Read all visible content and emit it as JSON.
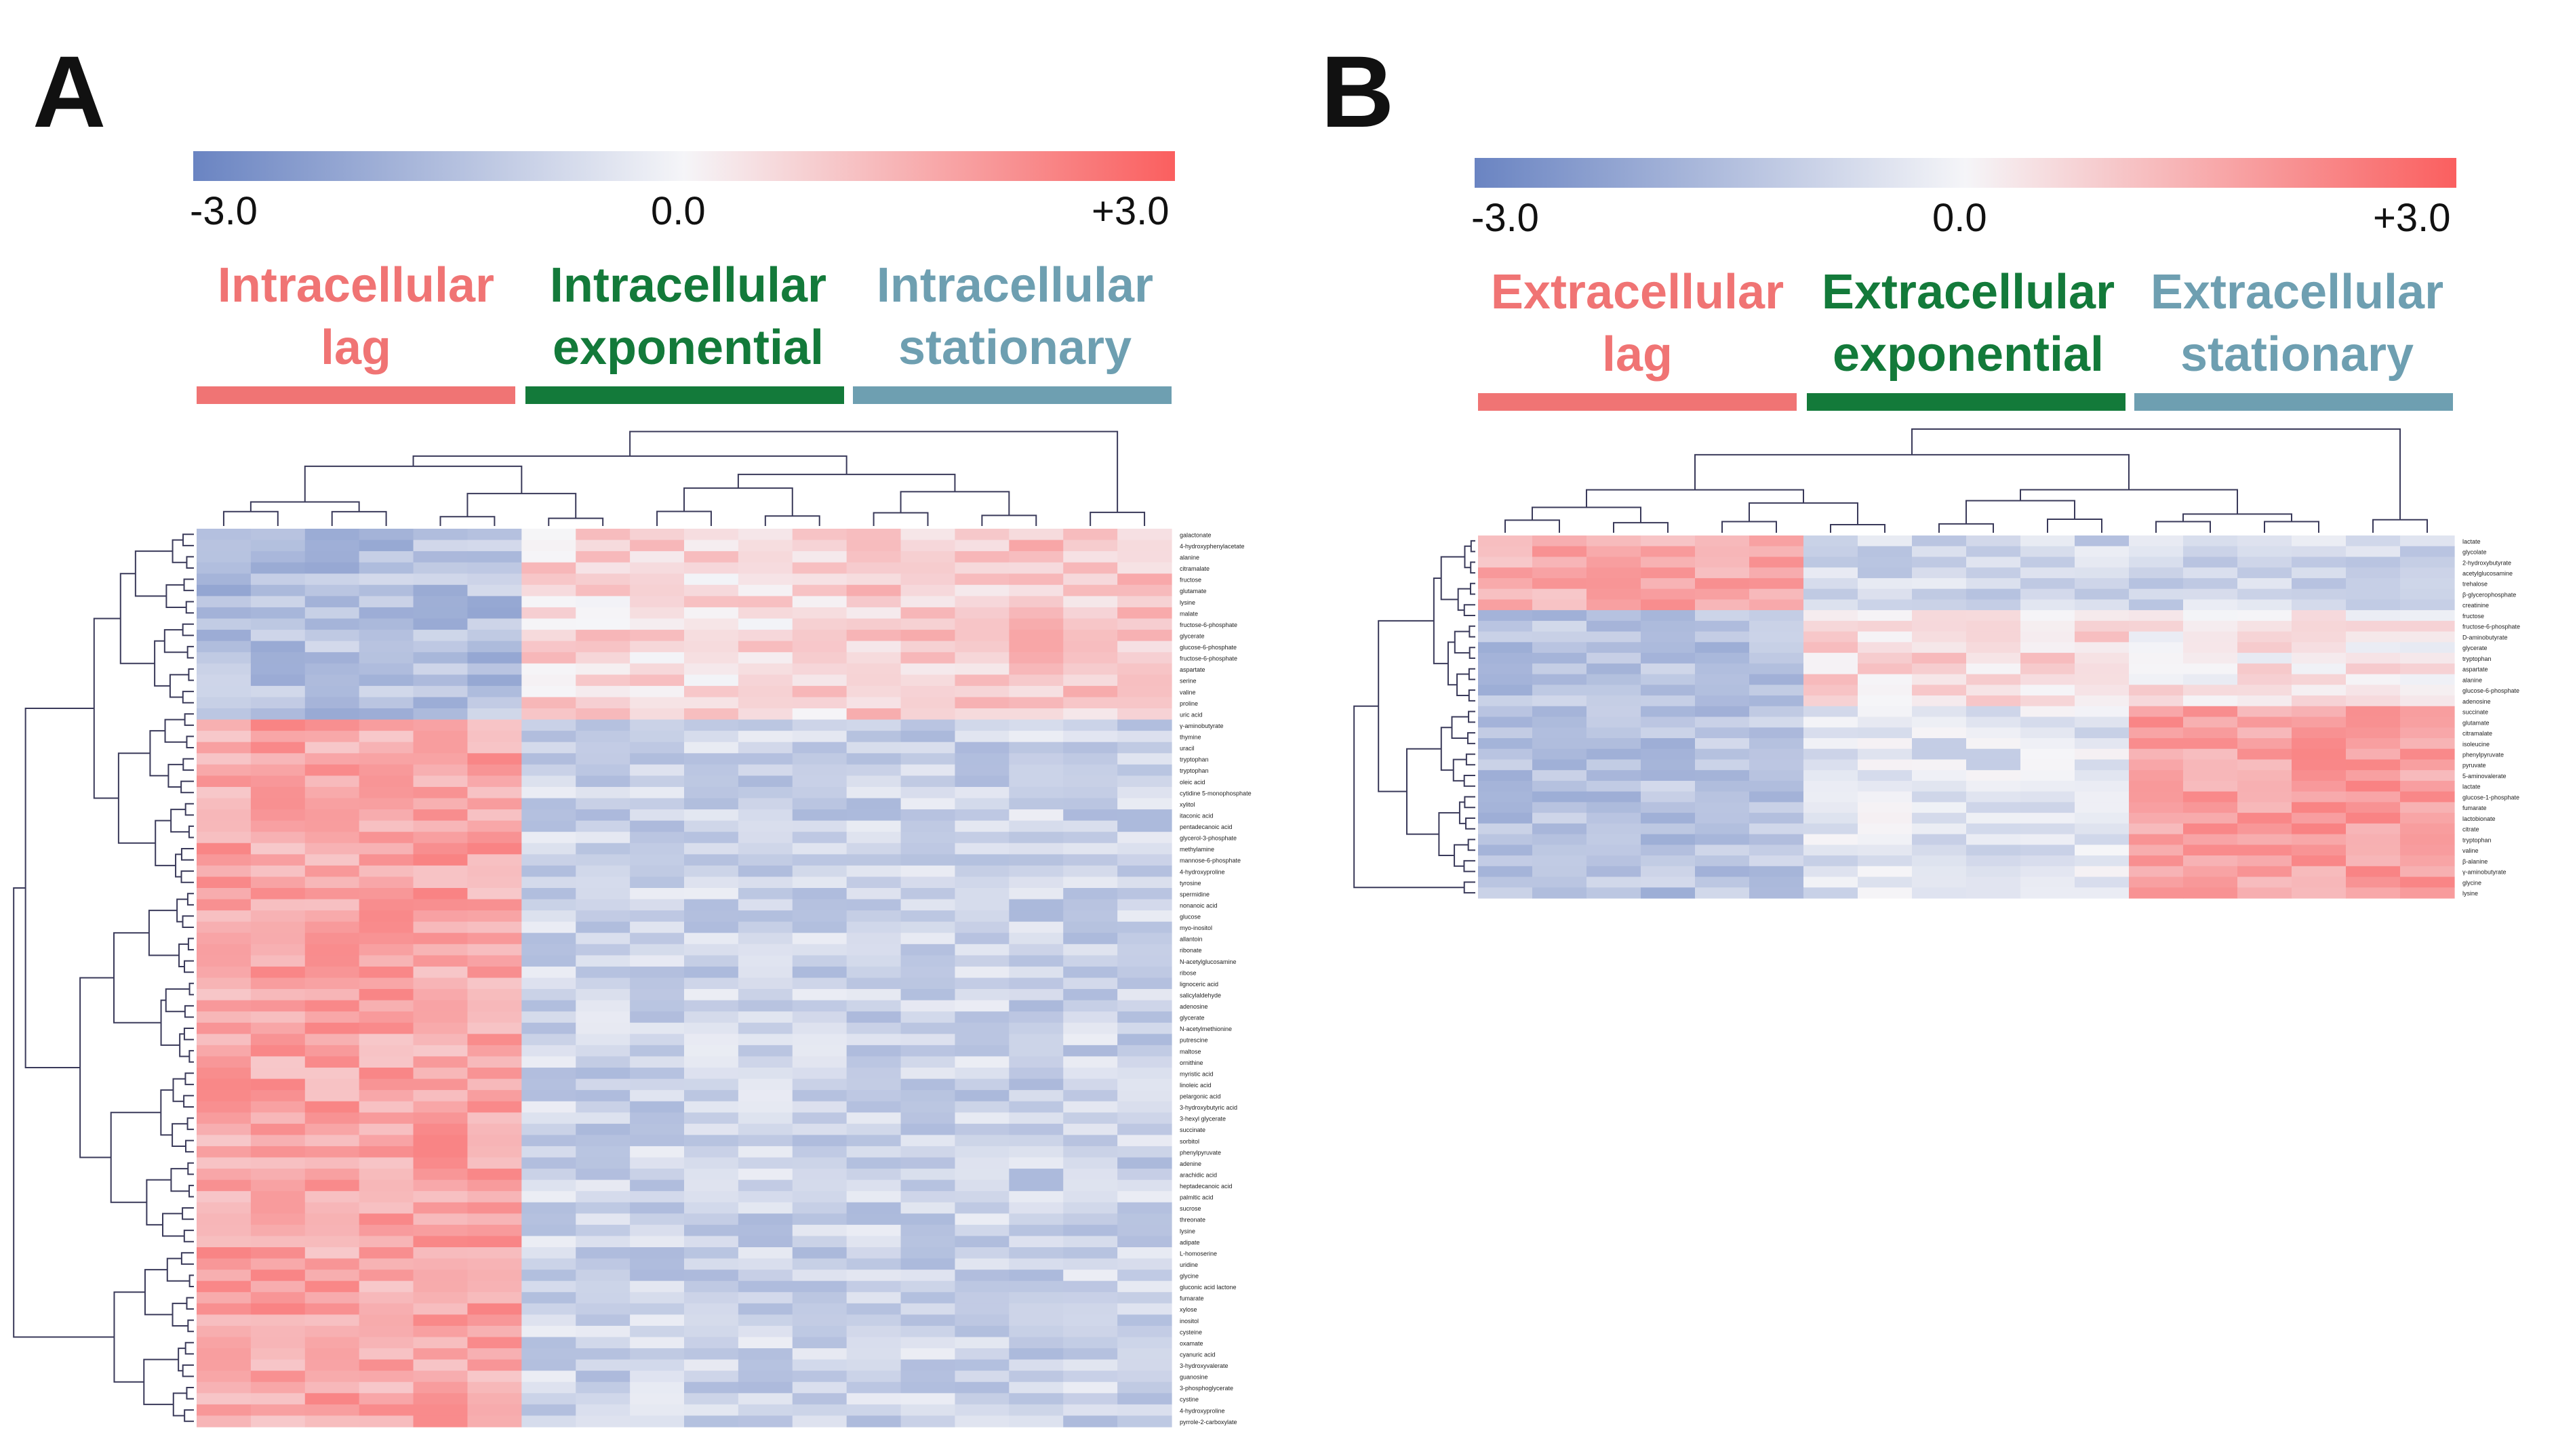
{
  "panel_labels": {
    "a": "A",
    "b": "B"
  },
  "colors": {
    "low": "#6a84c2",
    "mid": "#f5f5f8",
    "high": "#fa5f5f",
    "lag": "#f07474",
    "exponential": "#137a3a",
    "stationary": "#6e9fb1",
    "tree": "#3a3a5a"
  },
  "chart_data": [
    {
      "type": "heatmap",
      "panel": "A",
      "colorbar": {
        "min_label": "-3.0",
        "mid_label": "0.0",
        "max_label": "+3.0",
        "range": [
          -3,
          3
        ]
      },
      "groups": [
        {
          "line1": "Intracellular",
          "line2": "lag",
          "color": "lag",
          "columns": 6
        },
        {
          "line1": "Intracellular",
          "line2": "exponential",
          "color": "exponential",
          "columns": 6
        },
        {
          "line1": "Intracellular",
          "line2": "stationary",
          "color": "stationary",
          "columns": 6
        }
      ],
      "row_count": 80,
      "row_labels": [
        "galactonate",
        "4-hydroxyphenylacetate",
        "alanine",
        "citramalate",
        "fructose",
        "glutamate",
        "lysine",
        "malate",
        "fructose-6-phosphate",
        "glycerate",
        "glucose-6-phosphate",
        "fructose-6-phosphate",
        "aspartate",
        "serine",
        "valine",
        "proline",
        "uric acid",
        "γ-aminobutyrate",
        "thymine",
        "uracil",
        "tryptophan",
        "tryptophan",
        "oleic acid",
        "cytidine 5-monophosphate",
        "xylitol",
        "itaconic acid",
        "pentadecanoic acid",
        "glycerol-3-phosphate",
        "methylamine",
        "mannose-6-phosphate",
        "4-hydroxyproline",
        "tyrosine",
        "spermidine",
        "nonanoic acid",
        "glucose",
        "myo-inositol",
        "allantoin",
        "ribonate",
        "N-acetylglucosamine",
        "ribose",
        "lignoceric acid",
        "salicylaldehyde",
        "adenosine",
        "glycerate",
        "N-acetylmethionine",
        "putrescine",
        "maltose",
        "ornithine",
        "myristic acid",
        "linoleic acid",
        "pelargonic acid",
        "3-hydroxybutyric acid",
        "3-hexyl glycerate",
        "succinate",
        "sorbitol",
        "phenylpyruvate",
        "adenine",
        "arachidic acid",
        "heptadecanoic acid",
        "palmitic acid",
        "sucrose",
        "threonate",
        "lysine",
        "adipate",
        "L-homoserine",
        "uridine",
        "glycine",
        "gluconic acid lactone",
        "fumarate",
        "xylose",
        "inositol",
        "cysteine",
        "oxamate",
        "cyanuric acid",
        "3-hydroxyvalerate",
        "guanosine",
        "3-phosphoglycerate",
        "cystine",
        "4-hydroxyproline",
        "pyrrole-2-carboxylate"
      ],
      "pattern": "high in lag for most rows; top block high in exponential/stationary"
    },
    {
      "type": "heatmap",
      "panel": "B",
      "colorbar": {
        "min_label": "-3.0",
        "mid_label": "0.0",
        "max_label": "+3.0",
        "range": [
          -3,
          3
        ]
      },
      "groups": [
        {
          "line1": "Extracellular",
          "line2": "lag",
          "color": "lag",
          "columns": 6
        },
        {
          "line1": "Extracellular",
          "line2": "exponential",
          "color": "exponential",
          "columns": 6
        },
        {
          "line1": "Extracellular",
          "line2": "stationary",
          "color": "stationary",
          "columns": 6
        }
      ],
      "row_count": 34,
      "row_labels": [
        "lactate",
        "glycolate",
        "2-hydroxybutyrate",
        "acetylglucosamine",
        "trehalose",
        "β-glycerophosphate",
        "creatinine",
        "fructose",
        "fructose-6-phosphate",
        "D-aminobutyrate",
        "glycerate",
        "tryptophan",
        "aspartate",
        "alanine",
        "glucose-6-phosphate",
        "adenosine",
        "succinate",
        "glutamate",
        "citramalate",
        "isoleucine",
        "phenylpyruvate",
        "pyruvate",
        "5-aminovalerate",
        "lactate",
        "glucose-1-phosphate",
        "fumarate",
        "lactobionate",
        "citrate",
        "tryptophan",
        "valine",
        "β-alanine",
        "γ-aminobutyrate",
        "glycine",
        "lysine"
      ],
      "pattern": "top rows high in lag; lower rows high in stationary"
    }
  ]
}
